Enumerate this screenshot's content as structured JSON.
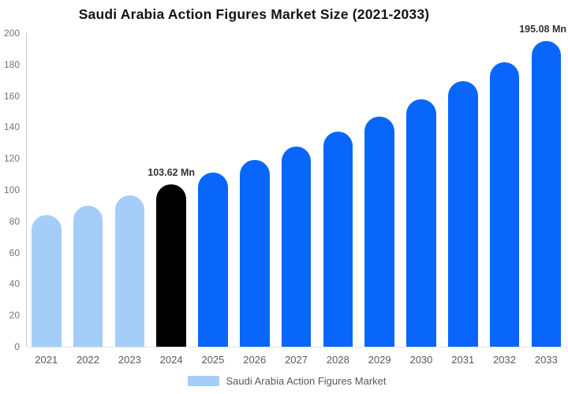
{
  "chart_data": {
    "type": "bar",
    "title": "Saudi Arabia Action Figures Market Size (2021-2033)",
    "unit": "Mn",
    "categories": [
      "2021",
      "2022",
      "2023",
      "2024",
      "2025",
      "2026",
      "2027",
      "2028",
      "2029",
      "2030",
      "2031",
      "2032",
      "2033"
    ],
    "values": [
      84.0,
      90.0,
      96.6,
      103.62,
      111.2,
      119.3,
      127.9,
      137.2,
      147.2,
      157.9,
      169.4,
      181.8,
      195.08
    ],
    "bar_colors": [
      "#A4CDF8",
      "#A4CDF8",
      "#A4CDF8",
      "#000000",
      "#0866FA",
      "#0866FA",
      "#0866FA",
      "#0866FA",
      "#0866FA",
      "#0866FA",
      "#0866FA",
      "#0866FA",
      "#0866FA"
    ],
    "ylim": [
      0,
      200
    ],
    "yticks": [
      0,
      20,
      40,
      60,
      80,
      100,
      120,
      140,
      160,
      180,
      200
    ],
    "grid": false,
    "annotations": [
      {
        "index": 3,
        "text": "103.62 Mn"
      },
      {
        "index": 12,
        "text": "195.08 Mn"
      }
    ],
    "legend": {
      "label": "Saudi Arabia Action Figures Market",
      "swatch_color": "#A4CDF8",
      "position": "bottom"
    },
    "accent_colors": {
      "primary_blue": "#0866FA",
      "light_blue": "#A4CDF8",
      "highlight_black": "#000000"
    }
  }
}
